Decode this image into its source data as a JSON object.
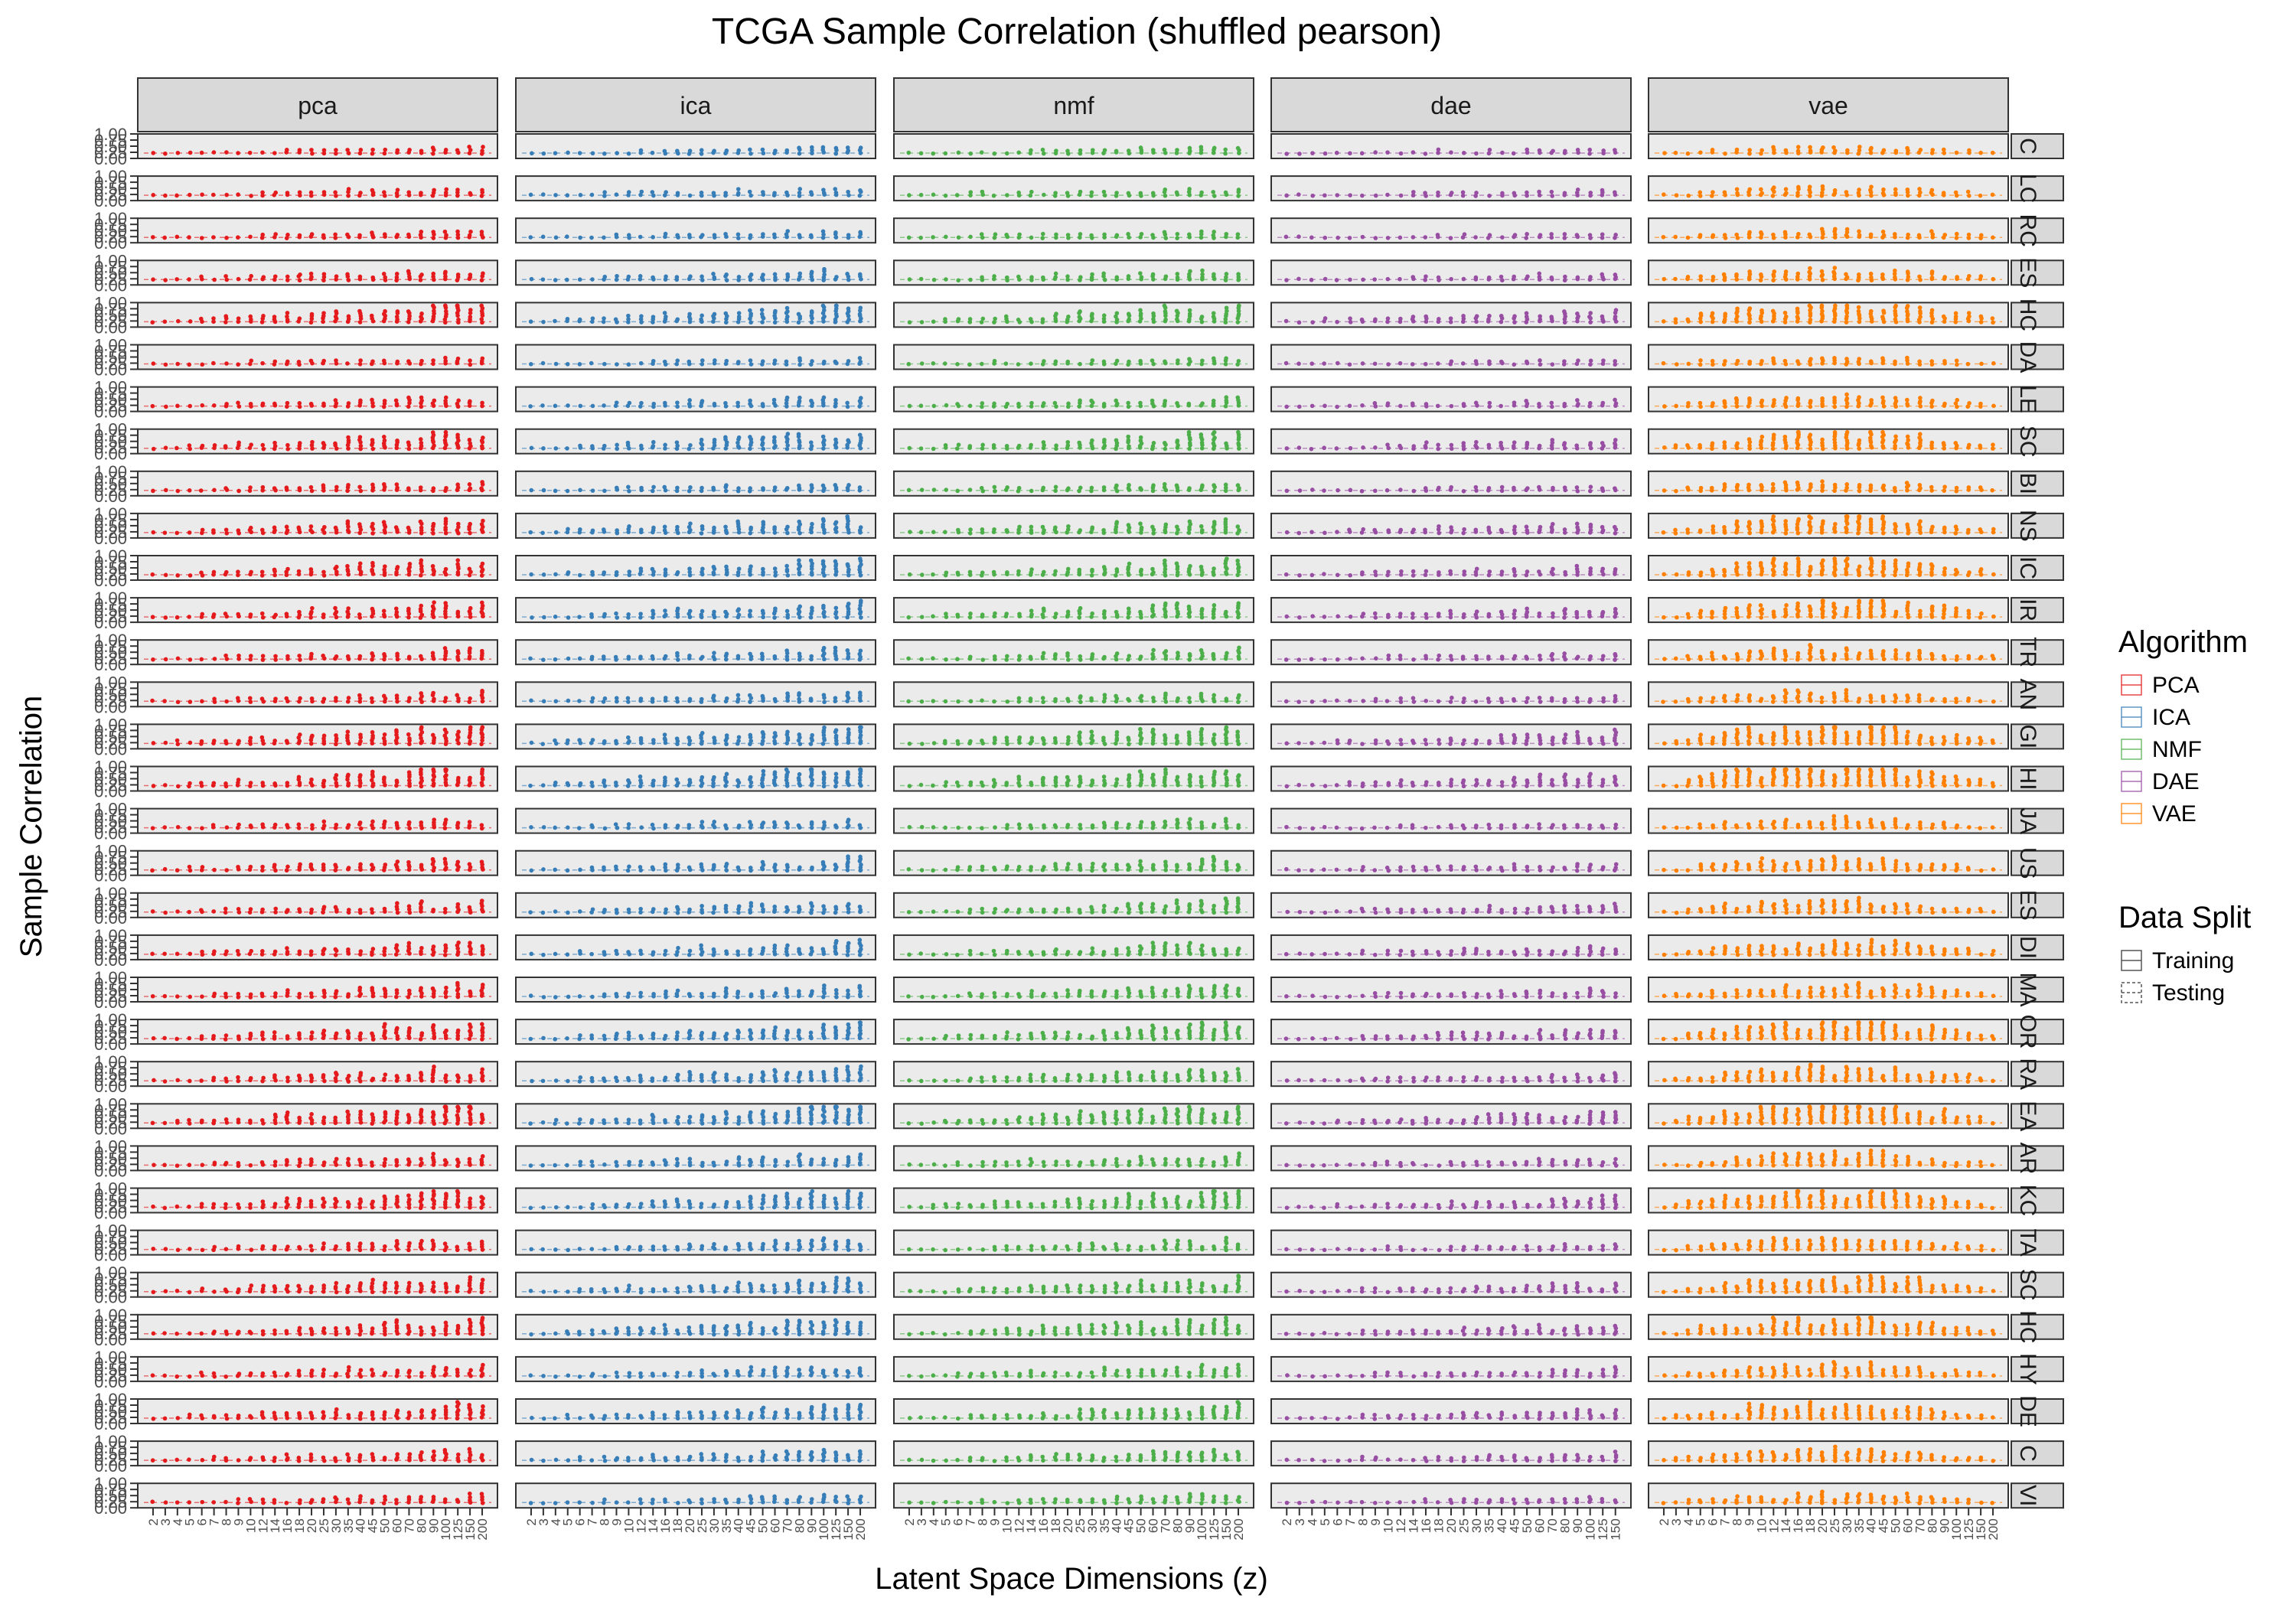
{
  "chart_data": {
    "type": "scatter",
    "title": "TCGA Sample Correlation (shuffled pearson)",
    "xlabel": "Latent Space Dimensions (z)",
    "ylabel": "Sample Correlation",
    "ylim": [
      0,
      1
    ],
    "y_ticks": [
      "0.00",
      "0.25",
      "0.50",
      "0.75",
      "1.00"
    ],
    "grid": false,
    "legend_position": "right",
    "facet_columns": [
      "pca",
      "ica",
      "nmf",
      "dae",
      "vae"
    ],
    "facet_rows": [
      "C",
      "LC",
      "RC",
      "ES",
      "HC",
      "DA",
      "LE",
      "SC",
      "BI",
      "NS",
      "IC",
      "IR",
      "TR",
      "AN",
      "GI",
      "HI",
      "JA",
      "US",
      "ES",
      "DI",
      "MA",
      "OR",
      "RA",
      "EA",
      "AR",
      "KC",
      "TA",
      "SC",
      "HC",
      "HY",
      "DE",
      "C",
      "VI"
    ],
    "x_ticks": {
      "pca": [
        "2",
        "3",
        "4",
        "5",
        "6",
        "7",
        "8",
        "9",
        "10",
        "12",
        "14",
        "16",
        "18",
        "20",
        "25",
        "30",
        "35",
        "40",
        "45",
        "50",
        "60",
        "70",
        "80",
        "90",
        "100",
        "125",
        "150",
        "200"
      ],
      "ica": [
        "2",
        "3",
        "4",
        "5",
        "6",
        "7",
        "8",
        "9",
        "10",
        "12",
        "14",
        "16",
        "18",
        "20",
        "25",
        "30",
        "35",
        "40",
        "45",
        "50",
        "60",
        "70",
        "80",
        "90",
        "100",
        "125",
        "150",
        "200"
      ],
      "nmf": [
        "2",
        "3",
        "4",
        "5",
        "6",
        "7",
        "8",
        "9",
        "10",
        "12",
        "14",
        "16",
        "18",
        "20",
        "25",
        "30",
        "35",
        "40",
        "45",
        "50",
        "60",
        "70",
        "80",
        "90",
        "100",
        "125",
        "150",
        "200"
      ],
      "dae": [
        "2",
        "3",
        "4",
        "5",
        "6",
        "7",
        "8",
        "9",
        "10",
        "12",
        "14",
        "16",
        "18",
        "20",
        "25",
        "30",
        "35",
        "40",
        "45",
        "50",
        "60",
        "70",
        "80",
        "90",
        "100",
        "125",
        "150"
      ],
      "vae": [
        "2",
        "3",
        "4",
        "5",
        "6",
        "7",
        "8",
        "9",
        "10",
        "12",
        "14",
        "16",
        "18",
        "20",
        "25",
        "30",
        "35",
        "40",
        "45",
        "50",
        "60",
        "70",
        "80",
        "90",
        "100",
        "125",
        "150",
        "200"
      ]
    },
    "series": [
      {
        "name": "PCA",
        "color": "#e41a1c"
      },
      {
        "name": "ICA",
        "color": "#377eb8"
      },
      {
        "name": "NMF",
        "color": "#4daf4a"
      },
      {
        "name": "DAE",
        "color": "#984ea3"
      },
      {
        "name": "VAE",
        "color": "#ff7f00"
      }
    ],
    "legends": [
      {
        "title": "Algorithm",
        "entries": [
          "PCA",
          "ICA",
          "NMF",
          "DAE",
          "VAE"
        ]
      },
      {
        "title": "Data Split",
        "entries": [
          "Training",
          "Testing"
        ]
      }
    ]
  }
}
